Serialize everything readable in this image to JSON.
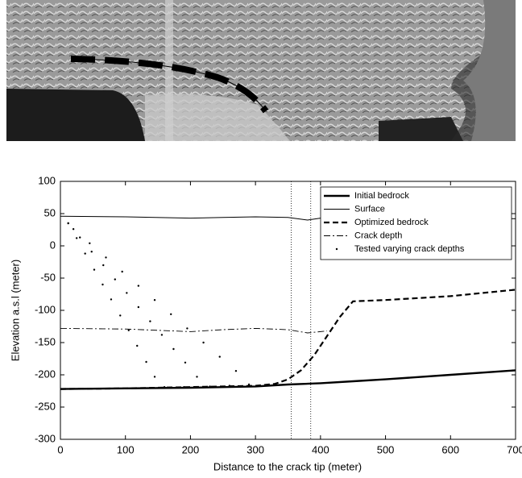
{
  "chart_data": {
    "type": "line",
    "xlabel": "Distance to the crack tip (meter)",
    "ylabel": "Elevation a.s.l (meter)",
    "xlim": [
      0,
      700
    ],
    "ylim": [
      -300,
      100
    ],
    "xticks": [
      0,
      100,
      200,
      300,
      400,
      500,
      600,
      700
    ],
    "yticks": [
      100,
      50,
      0,
      -50,
      -100,
      -150,
      -200,
      -250,
      -300
    ],
    "reference_lines": [
      355,
      385
    ],
    "legend": "upper right",
    "series": [
      {
        "name": "Initial bedrock",
        "color": "#000000",
        "style": "thick",
        "x": [
          0,
          100,
          200,
          300,
          350,
          400,
          450,
          500,
          600,
          700
        ],
        "values": [
          -222,
          -221,
          -220,
          -218,
          -215,
          -213,
          -210,
          -207,
          -200,
          -193
        ]
      },
      {
        "name": "Surface",
        "color": "#000000",
        "style": "thin",
        "x": [
          0,
          100,
          200,
          250,
          300,
          350,
          380,
          400,
          500,
          600,
          700
        ],
        "values": [
          46,
          45,
          43,
          44,
          45,
          44,
          40,
          43,
          44,
          44,
          42
        ]
      },
      {
        "name": "Optimized bedrock",
        "color": "#000000",
        "style": "dashed",
        "x": [
          0,
          100,
          200,
          300,
          330,
          350,
          370,
          390,
          410,
          430,
          450,
          500,
          600,
          700
        ],
        "values": [
          -222,
          -221,
          -219,
          -217,
          -214,
          -207,
          -193,
          -170,
          -140,
          -110,
          -86,
          -84,
          -78,
          -68
        ]
      },
      {
        "name": "Crack depth",
        "color": "#000000",
        "style": "dashdot",
        "x": [
          0,
          100,
          200,
          250,
          300,
          350,
          380,
          410
        ],
        "values": [
          -128,
          -129,
          -133,
          -130,
          -128,
          -130,
          -135,
          -132
        ]
      },
      {
        "name": "Tested varying crack depths",
        "color": "#000000",
        "style": "dots",
        "x": [
          12,
          25,
          38,
          52,
          65,
          78,
          92,
          105,
          118,
          132,
          145,
          12,
          30,
          48,
          66,
          84,
          102,
          120,
          138,
          156,
          174,
          192,
          210,
          20,
          45,
          70,
          95,
          120,
          145,
          170,
          195,
          220,
          245,
          270,
          160,
          190,
          230,
          260,
          290
        ],
        "values": [
          35,
          12,
          -12,
          -37,
          -60,
          -83,
          -108,
          -131,
          -155,
          -180,
          -203,
          35,
          13,
          -9,
          -30,
          -52,
          -73,
          -95,
          -117,
          -138,
          -160,
          -181,
          -203,
          26,
          4,
          -18,
          -40,
          -62,
          -84,
          -106,
          -128,
          -150,
          -172,
          -194,
          -219,
          -219,
          -218,
          -217,
          -215
        ]
      }
    ]
  }
}
